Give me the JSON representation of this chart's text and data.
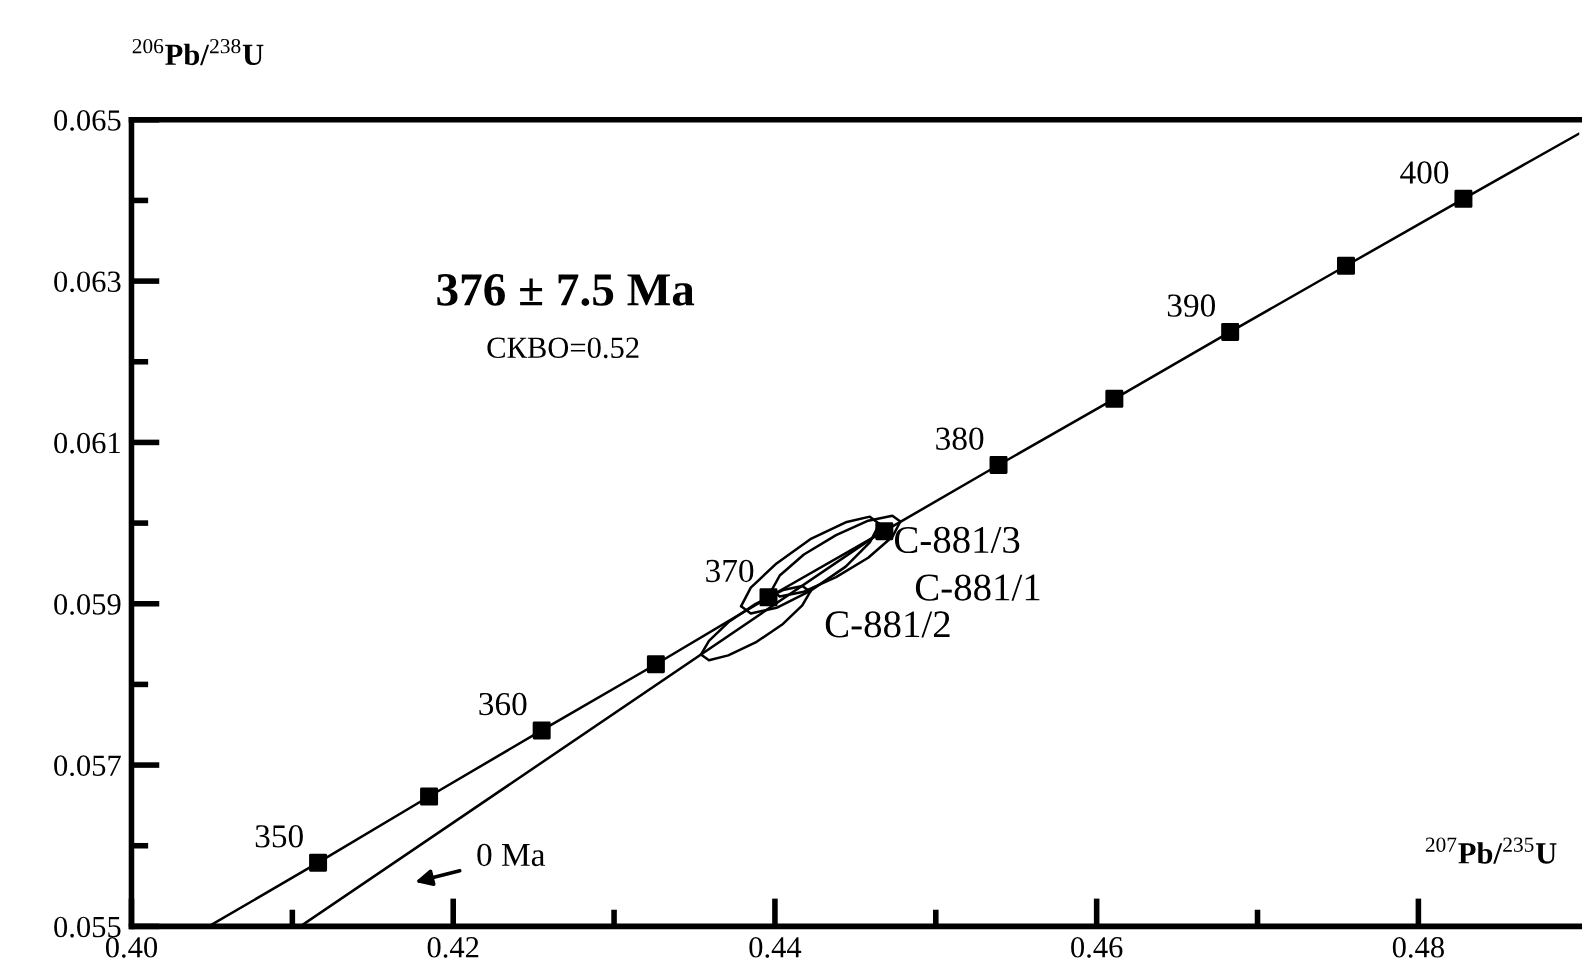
{
  "chart_data": {
    "type": "line",
    "xlabel": "$^{207}$Pb/$^{235}$U",
    "ylabel": "$^{206}$Pb/$^{238}$U",
    "xlim": [
      0.4,
      0.49
    ],
    "ylim": [
      0.055,
      0.065
    ],
    "xticks": [
      {
        "value": 0.4,
        "label": "0.40"
      },
      {
        "value": 0.41,
        "label": null
      },
      0.42,
      {
        "value": 0.43,
        "label": null
      },
      0.44,
      {
        "value": 0.45,
        "label": null
      },
      0.46,
      {
        "value": 0.47,
        "label": null
      },
      0.48
    ],
    "yticks": [
      0.055,
      {
        "value": 0.056,
        "label": null
      },
      0.057,
      {
        "value": 0.058,
        "label": null
      },
      0.059,
      {
        "value": 0.06,
        "label": null
      },
      0.061,
      {
        "value": 0.062,
        "label": null
      },
      0.063,
      {
        "value": 0.064,
        "label": null
      },
      0.065
    ],
    "series": [
      {
        "color": "#000000",
        "x": [
          0.4048,
          0.4116,
          0.4185,
          0.4255,
          0.4326,
          0.4396,
          0.4468,
          0.4539,
          0.4611,
          0.4683,
          0.4755,
          0.4828,
          0.49
        ],
        "values": [
          0.055,
          0.05579,
          0.05661,
          0.05743,
          0.05825,
          0.05908,
          0.0599,
          0.06072,
          0.06154,
          0.06237,
          0.06319,
          0.06402,
          0.06483
        ]
      },
      {
        "type": "scatter",
        "color": "#000000",
        "marker": "square",
        "x": [
          0.4116,
          0.4185,
          0.4255,
          0.4326,
          0.4396,
          0.4468,
          0.4539,
          0.4611,
          0.4683,
          0.4755,
          0.4828
        ],
        "values": [
          0.05579,
          0.05661,
          0.05743,
          0.05825,
          0.05908,
          0.0599,
          0.06072,
          0.06154,
          0.06237,
          0.06319,
          0.06402
        ]
      },
      {
        "color": "#000000",
        "x": [
          0.4105,
          0.4467
        ],
        "values": [
          0.055,
          0.0599
        ]
      },
      {
        "name": "C-881/3",
        "color": "#000000",
        "x": [
          0.4379,
          0.4385,
          0.4401,
          0.4422,
          0.4444,
          0.4459,
          0.4465
        ],
        "values": [
          0.05897,
          0.0592,
          0.0595,
          0.0598,
          0.06001,
          0.06008,
          0.05999
        ]
      },
      {
        "color": "#000000",
        "x": [
          0.4379,
          0.4385,
          0.4401,
          0.4422,
          0.4444,
          0.4459,
          0.4465
        ],
        "values": [
          0.05897,
          0.05888,
          0.05895,
          0.05916,
          0.05946,
          0.05976,
          0.05999
        ]
      },
      {
        "name": "C-881/1",
        "color": "#000000",
        "x": [
          0.4398,
          0.4403,
          0.4418,
          0.4438,
          0.4458,
          0.4473,
          0.4478
        ],
        "values": [
          0.05917,
          0.05935,
          0.05961,
          0.05985,
          0.06003,
          0.06009,
          0.06002
        ]
      },
      {
        "color": "#000000",
        "x": [
          0.4398,
          0.4403,
          0.4418,
          0.4438,
          0.4458,
          0.4473,
          0.4478
        ],
        "values": [
          0.05917,
          0.05909,
          0.05915,
          0.05933,
          0.05957,
          0.05983,
          0.06002
        ]
      },
      {
        "name": "C-881/2",
        "color": "#000000",
        "x": [
          0.4354,
          0.4359,
          0.4371,
          0.4388,
          0.4405,
          0.4417,
          0.4422
        ],
        "values": [
          0.05837,
          0.05854,
          0.05877,
          0.059,
          0.05917,
          0.05922,
          0.05915
        ]
      },
      {
        "color": "#000000",
        "x": [
          0.4354,
          0.4359,
          0.4371,
          0.4388,
          0.4405,
          0.4417,
          0.4422
        ],
        "values": [
          0.05837,
          0.0583,
          0.05836,
          0.05852,
          0.05875,
          0.05898,
          0.05915
        ]
      }
    ],
    "annotations": [
      "376 ± 7.5 Ma",
      "СКВО=0.52",
      "0 Ma",
      {
        "text": "350",
        "x": 0.4116,
        "y": 0.05579
      },
      {
        "text": "360",
        "x": 0.4255,
        "y": 0.05743
      },
      {
        "text": "370",
        "x": 0.4396,
        "y": 0.05908
      },
      {
        "text": "380",
        "x": 0.4539,
        "y": 0.06072
      },
      {
        "text": "390",
        "x": 0.4683,
        "y": 0.06237
      },
      {
        "text": "400",
        "x": 0.4828,
        "y": 0.06402
      }
    ]
  }
}
